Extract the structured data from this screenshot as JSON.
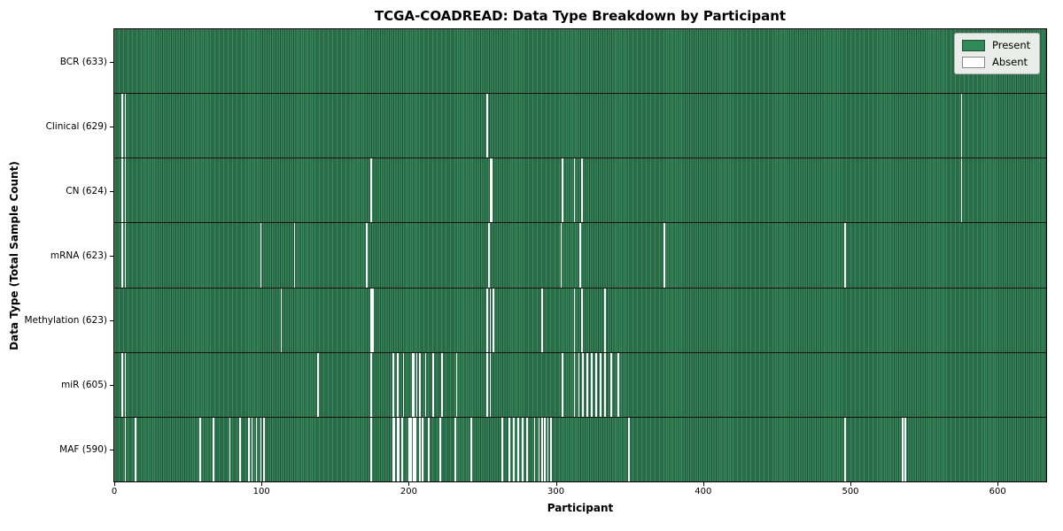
{
  "title": "TCGA-COADREAD: Data Type Breakdown by Participant",
  "chart_data": {
    "type": "heatmap",
    "title": "TCGA-COADREAD: Data Type Breakdown by Participant",
    "xlabel": "Participant",
    "ylabel": "Data Type (Total Sample Count)",
    "x_range": [
      0,
      633
    ],
    "x_ticks": [
      0,
      100,
      200,
      300,
      400,
      500,
      600
    ],
    "n_participants": 633,
    "grid": false,
    "legend_position": "upper right",
    "legend": [
      {
        "label": "Present",
        "color": "#2e8b57"
      },
      {
        "label": "Absent",
        "color": "#ffffff"
      }
    ],
    "colors": {
      "present": "#2e8b57",
      "present_edge": "#1e5236",
      "absent": "#ffffff",
      "spine": "#000000"
    },
    "rows": [
      {
        "name": "BCR",
        "total": 633,
        "label": "BCR (633)",
        "absent": []
      },
      {
        "name": "Clinical",
        "total": 629,
        "label": "Clinical (629)",
        "absent": [
          5,
          7,
          253,
          575
        ]
      },
      {
        "name": "CN",
        "total": 624,
        "label": "CN (624)",
        "absent": [
          5,
          7,
          174,
          255,
          256,
          304,
          312,
          317,
          575
        ]
      },
      {
        "name": "mRNA",
        "total": 623,
        "label": "mRNA (623)",
        "absent": [
          5,
          7,
          99,
          122,
          171,
          254,
          303,
          316,
          373,
          496
        ]
      },
      {
        "name": "Methylation",
        "total": 623,
        "label": "Methylation (623)",
        "absent": [
          113,
          174,
          175,
          253,
          255,
          257,
          290,
          312,
          317,
          333
        ]
      },
      {
        "name": "miR",
        "total": 605,
        "label": "miR (605)",
        "absent": [
          5,
          7,
          138,
          174,
          189,
          192,
          196,
          202,
          203,
          205,
          207,
          211,
          216,
          222,
          232,
          253,
          255,
          304,
          312,
          315,
          318,
          321,
          324,
          327,
          330,
          333,
          337,
          342
        ]
      },
      {
        "name": "MAF",
        "total": 590,
        "label": "MAF (590)",
        "absent": [
          7,
          14,
          58,
          67,
          78,
          85,
          91,
          93,
          96,
          99,
          101,
          174,
          189,
          190,
          192,
          193,
          195,
          200,
          201,
          203,
          204,
          207,
          209,
          213,
          221,
          231,
          242,
          263,
          268,
          271,
          274,
          277,
          280,
          285,
          288,
          290,
          292,
          294,
          296,
          349,
          496,
          535,
          537
        ]
      }
    ]
  }
}
